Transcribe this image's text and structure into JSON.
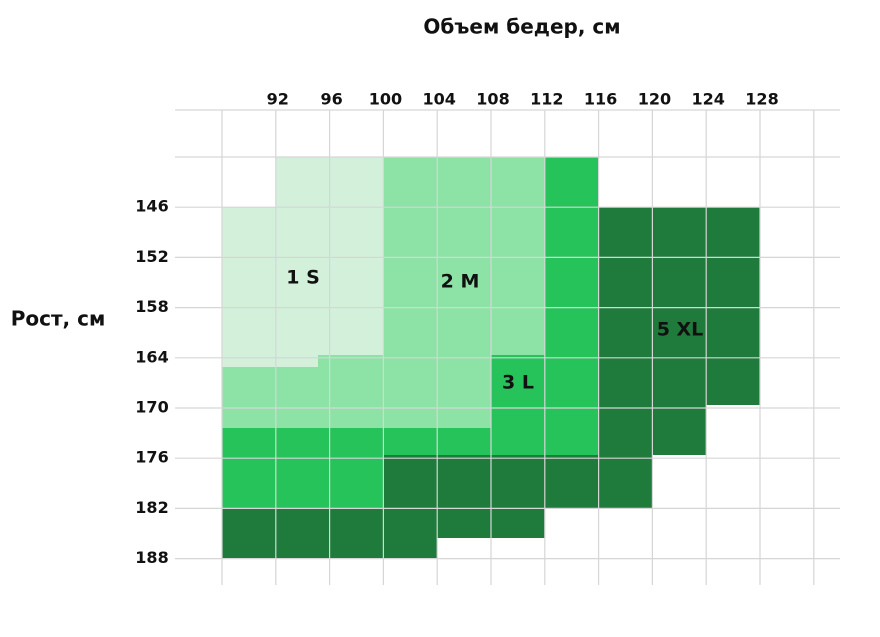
{
  "title": "Объем бедер, см",
  "y_label": "Рост, см",
  "columns": [
    92,
    96,
    100,
    104,
    108,
    112,
    116,
    120,
    124,
    128
  ],
  "rows": [
    146,
    152,
    158,
    164,
    170,
    176,
    182,
    188
  ],
  "regions": [
    {
      "label": "1 S"
    },
    {
      "label": "2 M"
    },
    {
      "label": "3 L"
    },
    {
      "label": "5 XL"
    }
  ]
}
